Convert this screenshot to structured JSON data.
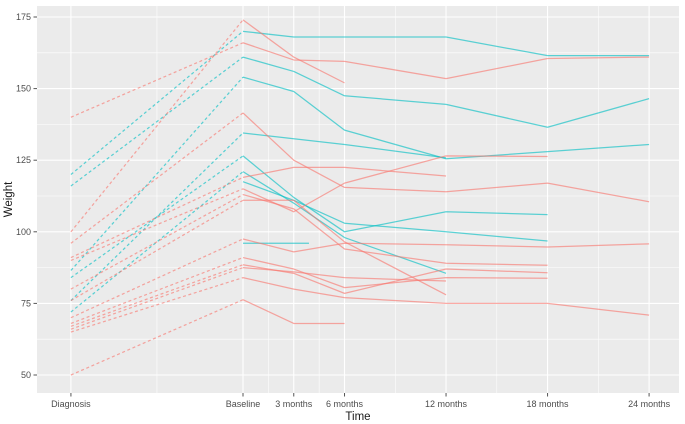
{
  "chart_data": {
    "type": "line",
    "title": "",
    "xlabel": "Time",
    "ylabel": "Weight",
    "x_ticks": [
      {
        "label": "Diagnosis",
        "month": -10.17
      },
      {
        "label": "Baseline",
        "month": 0
      },
      {
        "label": "3 months",
        "month": 3
      },
      {
        "label": "6 months",
        "month": 6
      },
      {
        "label": "12 months",
        "month": 12
      },
      {
        "label": "18 months",
        "month": 18
      },
      {
        "label": "24 months",
        "month": 24
      }
    ],
    "y_ticks": [
      50,
      75,
      100,
      125,
      150,
      175
    ],
    "y_minor": [
      62.5,
      87.5,
      112.5,
      137.5,
      162.5
    ],
    "ylim": [
      43.7,
      178.8
    ],
    "legend": "none",
    "grid": "on",
    "style_notes": "ggplot2 grey panel, white gridlines; dashed segment = Diagnosis to Baseline, solid after Baseline",
    "colors": {
      "salmon": "#F8766D",
      "teal": "#00BFC4"
    },
    "series": [
      {
        "id": "teal-01",
        "color": "teal",
        "points": [
          [
            -10.17,
            120
          ],
          [
            0,
            170
          ],
          [
            3,
            168
          ],
          [
            6,
            168
          ],
          [
            12,
            168
          ],
          [
            18,
            161.5
          ],
          [
            24,
            161.5
          ]
        ]
      },
      {
        "id": "teal-02",
        "color": "teal",
        "points": [
          [
            -10.17,
            116
          ],
          [
            0,
            161
          ],
          [
            3,
            156
          ],
          [
            6,
            147.5
          ],
          [
            12,
            144.5
          ],
          [
            18,
            136.5
          ],
          [
            24,
            146.5
          ]
        ]
      },
      {
        "id": "teal-03",
        "color": "teal",
        "points": [
          [
            -10.17,
            86.5
          ],
          [
            0,
            154
          ],
          [
            3,
            149
          ],
          [
            6,
            135.5
          ],
          [
            12,
            125.5
          ],
          [
            18,
            128
          ],
          [
            24,
            130.5
          ]
        ]
      },
      {
        "id": "teal-04",
        "color": "teal",
        "points": [
          [
            -10.17,
            84
          ],
          [
            0,
            126.5
          ],
          [
            3,
            112
          ],
          [
            6,
            100
          ],
          [
            12,
            107
          ],
          [
            18,
            106
          ]
        ]
      },
      {
        "id": "teal-05",
        "color": "teal",
        "points": [
          [
            -10.17,
            76
          ],
          [
            0,
            134.5
          ],
          [
            3,
            132.5
          ],
          [
            6,
            130.5
          ],
          [
            12,
            125.8
          ]
        ]
      },
      {
        "id": "teal-06",
        "color": "teal",
        "points": [
          [
            -10.17,
            72
          ],
          [
            0,
            121
          ],
          [
            3,
            110
          ],
          [
            6,
            98
          ],
          [
            12,
            85.5
          ]
        ]
      },
      {
        "id": "teal-07",
        "color": "teal",
        "points": [
          [
            0,
            117.5
          ],
          [
            3,
            111
          ],
          [
            6,
            103
          ],
          [
            12,
            100
          ],
          [
            18,
            96.8
          ]
        ]
      },
      {
        "id": "teal-08",
        "color": "teal",
        "points": [
          [
            0,
            96
          ],
          [
            3,
            96
          ],
          [
            3.9,
            96
          ]
        ]
      },
      {
        "id": "salmon-01",
        "color": "salmon",
        "points": [
          [
            -10.17,
            140
          ],
          [
            0,
            166
          ],
          [
            3,
            160
          ],
          [
            6,
            159.5
          ],
          [
            12,
            153.5
          ],
          [
            18,
            160.5
          ],
          [
            24,
            161
          ]
        ]
      },
      {
        "id": "salmon-02",
        "color": "salmon",
        "points": [
          [
            -10.17,
            100
          ],
          [
            0,
            174
          ],
          [
            3,
            161
          ],
          [
            6,
            152
          ]
        ]
      },
      {
        "id": "salmon-03",
        "color": "salmon",
        "points": [
          [
            -10.17,
            96
          ],
          [
            0,
            141.5
          ],
          [
            3,
            125
          ],
          [
            6,
            115.5
          ],
          [
            12,
            114
          ],
          [
            18,
            117
          ],
          [
            24,
            110.5
          ]
        ]
      },
      {
        "id": "salmon-04",
        "color": "salmon",
        "points": [
          [
            -10.17,
            91
          ],
          [
            0,
            119
          ],
          [
            3,
            122.5
          ],
          [
            6,
            122.5
          ],
          [
            12,
            119.5
          ]
        ]
      },
      {
        "id": "salmon-05",
        "color": "salmon",
        "points": [
          [
            -10.17,
            90
          ],
          [
            0,
            115
          ],
          [
            3,
            107
          ],
          [
            6,
            117
          ],
          [
            12,
            126.5
          ],
          [
            18,
            126.3
          ]
        ]
      },
      {
        "id": "salmon-06",
        "color": "salmon",
        "points": [
          [
            -10.17,
            80
          ],
          [
            0,
            113
          ],
          [
            3,
            108
          ],
          [
            6,
            94
          ],
          [
            12,
            89
          ],
          [
            18,
            88.3
          ]
        ]
      },
      {
        "id": "salmon-07",
        "color": "salmon",
        "points": [
          [
            -10.17,
            76
          ],
          [
            0,
            111
          ],
          [
            3,
            111
          ],
          [
            6,
            96.5
          ],
          [
            12,
            78
          ]
        ]
      },
      {
        "id": "salmon-08",
        "color": "salmon",
        "points": [
          [
            -10.17,
            70
          ],
          [
            0,
            97.5
          ],
          [
            3,
            93
          ],
          [
            6,
            96
          ],
          [
            12,
            95.5
          ],
          [
            18,
            94.7
          ],
          [
            24,
            95.8
          ]
        ]
      },
      {
        "id": "salmon-09",
        "color": "salmon",
        "points": [
          [
            -10.17,
            68
          ],
          [
            0,
            91
          ],
          [
            3,
            87
          ],
          [
            6,
            80.5
          ],
          [
            12,
            84
          ],
          [
            18,
            83.8
          ]
        ]
      },
      {
        "id": "salmon-10",
        "color": "salmon",
        "points": [
          [
            -10.17,
            67
          ],
          [
            0,
            88.5
          ],
          [
            3,
            85.5
          ],
          [
            6,
            78.5
          ],
          [
            12,
            87
          ],
          [
            18,
            85.7
          ]
        ]
      },
      {
        "id": "salmon-11",
        "color": "salmon",
        "points": [
          [
            -10.17,
            66
          ],
          [
            0,
            87.5
          ],
          [
            3,
            86
          ],
          [
            6,
            84
          ],
          [
            12,
            82.8
          ]
        ]
      },
      {
        "id": "salmon-12",
        "color": "salmon",
        "points": [
          [
            -10.17,
            65
          ],
          [
            0,
            84
          ],
          [
            3,
            80
          ],
          [
            6,
            77
          ],
          [
            12,
            75
          ],
          [
            18,
            75
          ],
          [
            24,
            70.9
          ]
        ]
      },
      {
        "id": "salmon-13",
        "color": "salmon",
        "points": [
          [
            -10.17,
            50
          ],
          [
            0,
            76.3
          ],
          [
            3,
            68
          ],
          [
            6,
            68
          ]
        ]
      }
    ]
  },
  "layout": {
    "panel_bg": "#EBEBEB",
    "grid_color": "#FFFFFF",
    "tick_color": "#555555",
    "tick_label_color": "#4D4D4D",
    "axis_title_color": "#1a1a1a",
    "line_opacity": 0.62,
    "line_width": 1.25
  }
}
